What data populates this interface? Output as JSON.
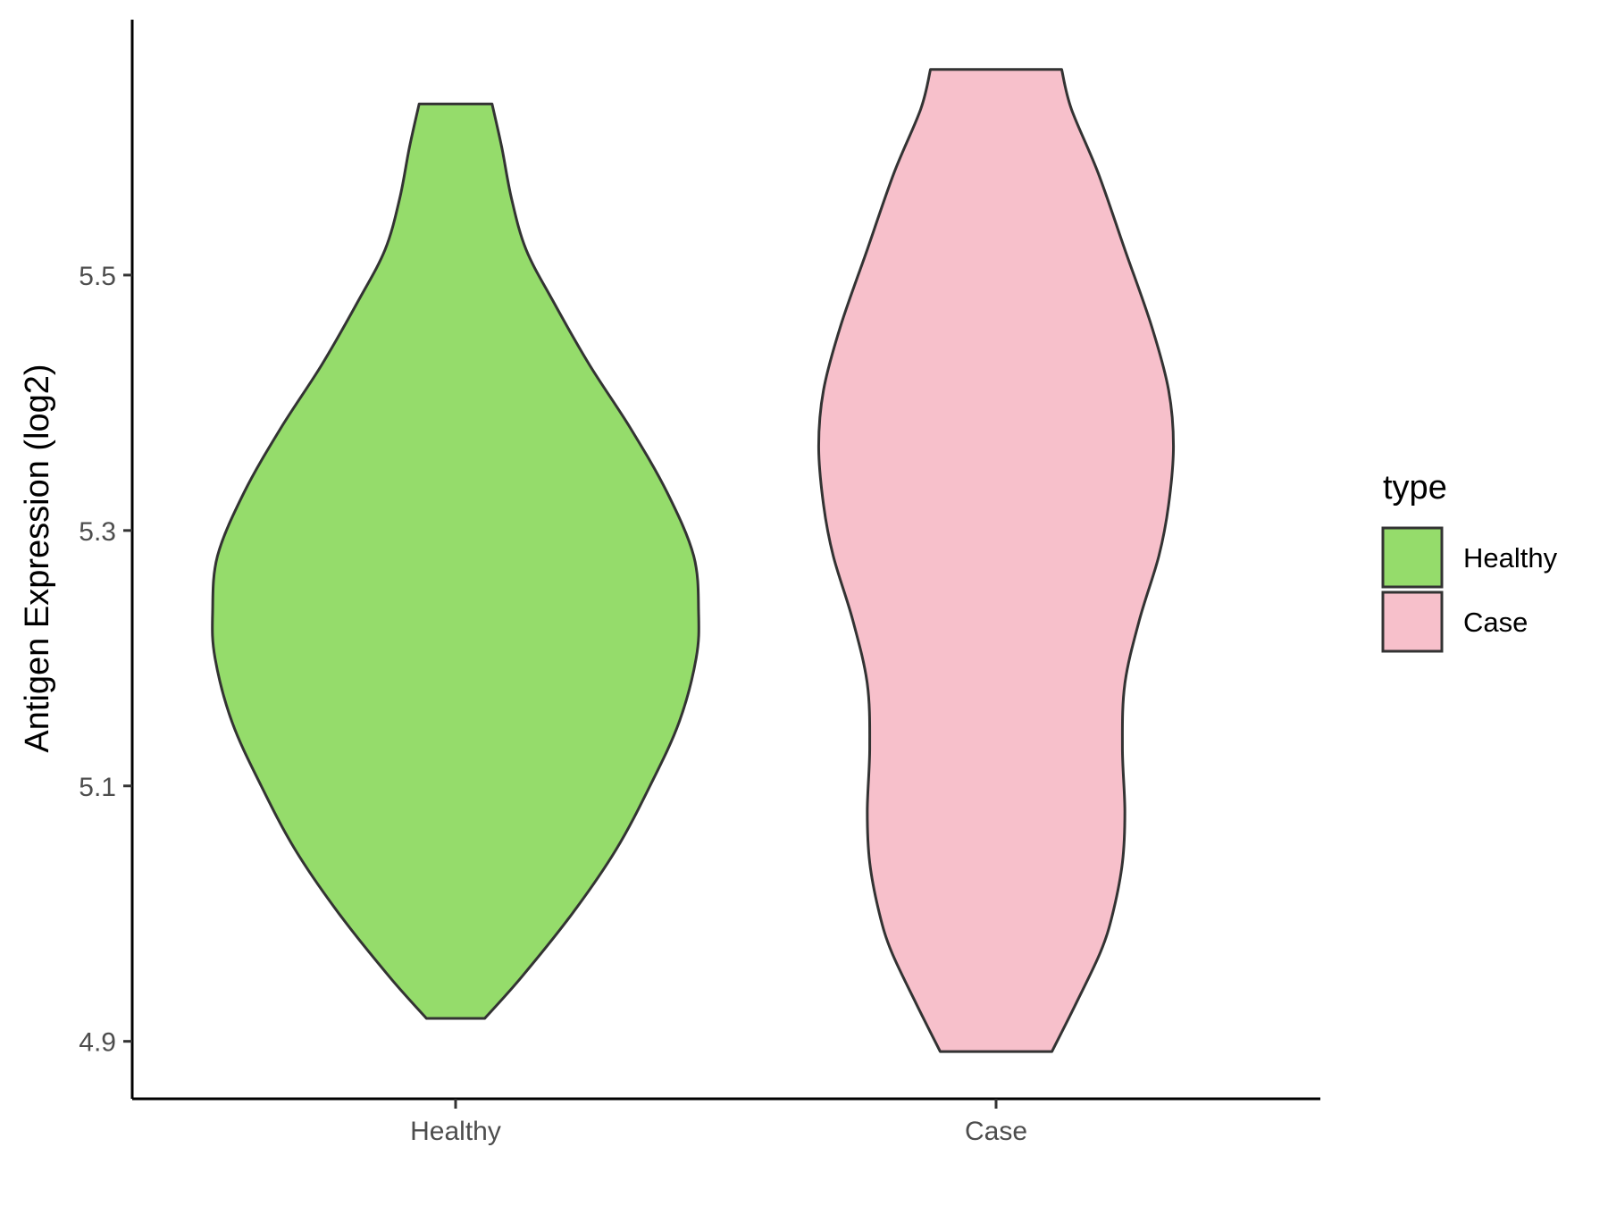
{
  "chart_data": {
    "type": "violin",
    "title": "",
    "xlabel": "",
    "ylabel": "Antigen Expression (log2)",
    "ylim": [
      4.855,
      5.7
    ],
    "y_ticks": [
      "4.9",
      "5.1",
      "5.3",
      "5.5"
    ],
    "grid": false,
    "legend": {
      "title": "type",
      "position": "right",
      "entries": [
        "Healthy",
        "Case"
      ]
    },
    "categories": [
      "Healthy",
      "Case"
    ],
    "series": [
      {
        "name": "Healthy",
        "color": "#95dc6b",
        "min": 4.918,
        "max": 5.634,
        "density_profile": [
          [
            4.918,
            0.12
          ],
          [
            4.95,
            0.27
          ],
          [
            5.0,
            0.48
          ],
          [
            5.05,
            0.66
          ],
          [
            5.1,
            0.8
          ],
          [
            5.15,
            0.92
          ],
          [
            5.2,
            0.99
          ],
          [
            5.236,
            1.0
          ],
          [
            5.28,
            0.98
          ],
          [
            5.33,
            0.87
          ],
          [
            5.38,
            0.72
          ],
          [
            5.43,
            0.55
          ],
          [
            5.48,
            0.4
          ],
          [
            5.52,
            0.29
          ],
          [
            5.56,
            0.23
          ],
          [
            5.6,
            0.19
          ],
          [
            5.634,
            0.15
          ]
        ]
      },
      {
        "name": "Case",
        "color": "#f7c0cb",
        "min": 4.892,
        "max": 5.661,
        "density_profile": [
          [
            4.892,
            0.23
          ],
          [
            4.93,
            0.33
          ],
          [
            4.97,
            0.43
          ],
          [
            5.0,
            0.48
          ],
          [
            5.04,
            0.52
          ],
          [
            5.08,
            0.53
          ],
          [
            5.13,
            0.52
          ],
          [
            5.18,
            0.53
          ],
          [
            5.23,
            0.59
          ],
          [
            5.28,
            0.67
          ],
          [
            5.32,
            0.71
          ],
          [
            5.366,
            0.73
          ],
          [
            5.41,
            0.71
          ],
          [
            5.46,
            0.64
          ],
          [
            5.52,
            0.53
          ],
          [
            5.58,
            0.42
          ],
          [
            5.63,
            0.31
          ],
          [
            5.661,
            0.27
          ]
        ]
      }
    ]
  }
}
